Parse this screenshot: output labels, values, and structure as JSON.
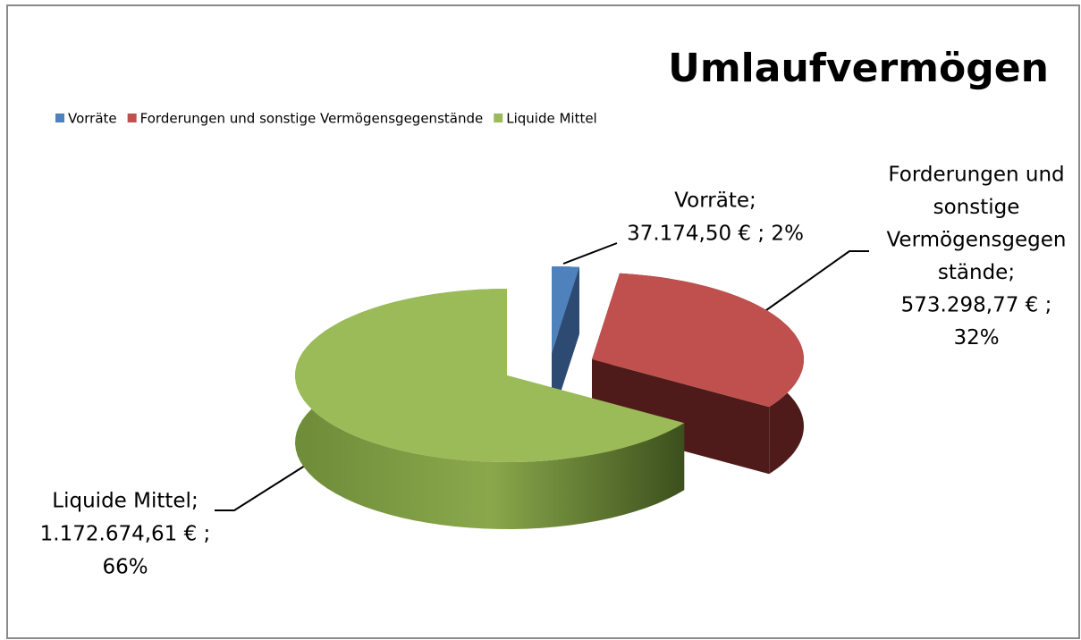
{
  "chart_data": {
    "type": "pie",
    "title": "Umlaufvermögen",
    "categories": [
      "Vorräte",
      "Forderungen und sonstige Vermögensgegenstände",
      "Liquide Mittel"
    ],
    "values": [
      37174.5,
      573298.77,
      1172674.61
    ],
    "value_labels": [
      "37.174,50 €",
      "573.298,77 €",
      "1.172.674,61 €"
    ],
    "colors": [
      "#4f81bd",
      "#c0504d",
      "#9bbb59"
    ],
    "data_labels": [
      [
        "Vorräte;",
        "37.174,50 € ; 2%"
      ],
      [
        "Forderungen und",
        "sonstige",
        "Vermögensgegen",
        "stände;",
        "573.298,77 € ;",
        "32%"
      ],
      [
        "Liquide Mittel;",
        "1.172.674,61 € ;",
        "66%"
      ]
    ],
    "legend": "top-left"
  }
}
